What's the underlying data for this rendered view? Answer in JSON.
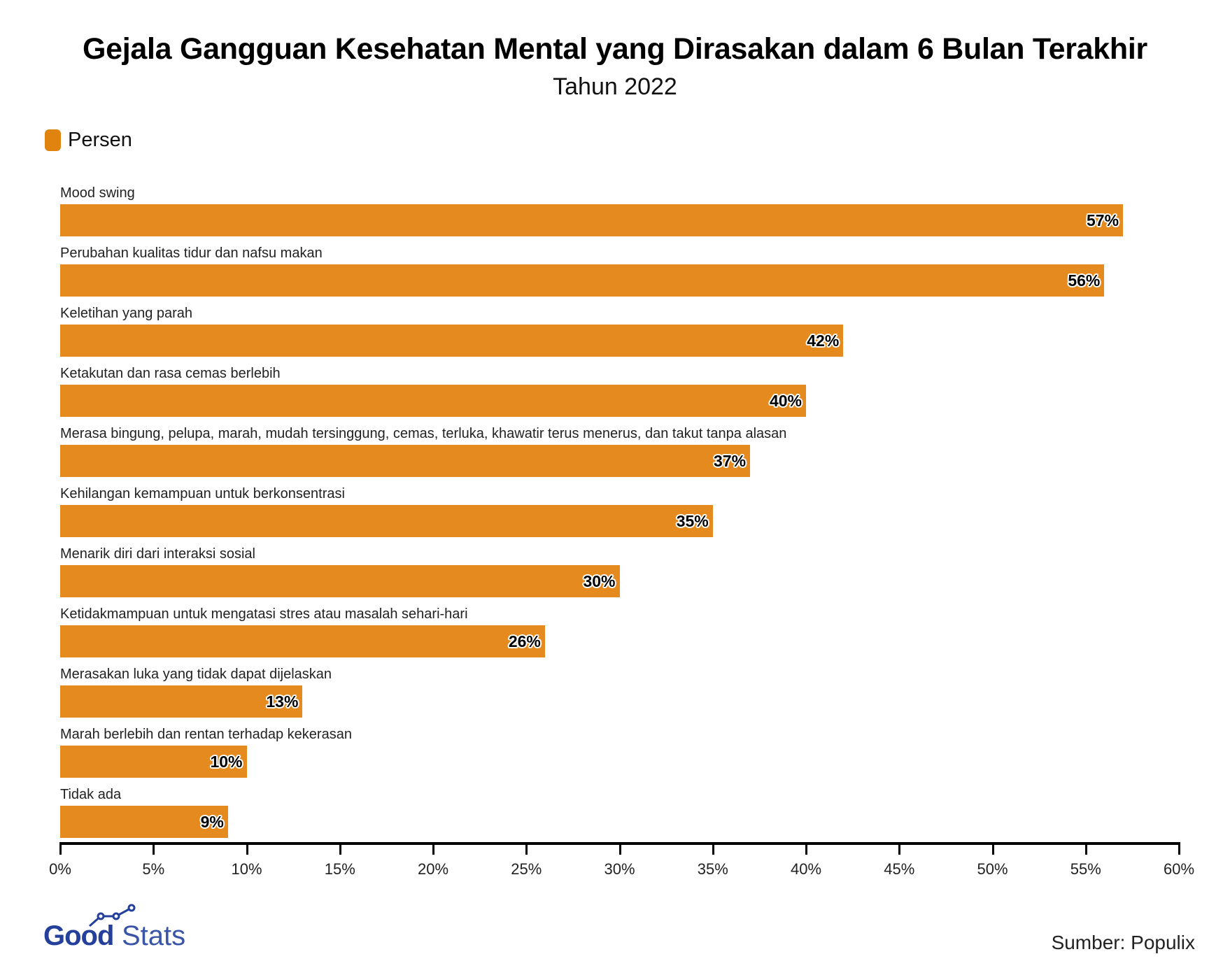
{
  "header": {
    "title": "Gejala Gangguan Kesehatan Mental yang Dirasakan dalam 6 Bulan Terakhir",
    "subtitle": "Tahun 2022"
  },
  "legend": {
    "label": "Persen",
    "color": "#E1830F"
  },
  "rows": [
    {
      "label": "Mood swing",
      "value": 57,
      "value_label": "57%"
    },
    {
      "label": "Perubahan kualitas tidur dan nafsu makan",
      "value": 56,
      "value_label": "56%"
    },
    {
      "label": "Keletihan yang parah",
      "value": 42,
      "value_label": "42%"
    },
    {
      "label": "Ketakutan dan rasa cemas berlebih",
      "value": 40,
      "value_label": "40%"
    },
    {
      "label": "Merasa bingung, pelupa, marah, mudah tersinggung, cemas, terluka, khawatir terus menerus, dan takut tanpa alasan",
      "value": 37,
      "value_label": "37%"
    },
    {
      "label": "Kehilangan kemampuan untuk berkonsentrasi",
      "value": 35,
      "value_label": "35%"
    },
    {
      "label": "Menarik diri dari interaksi sosial",
      "value": 30,
      "value_label": "30%"
    },
    {
      "label": "Ketidakmampuan untuk mengatasi stres atau masalah sehari-hari",
      "value": 26,
      "value_label": "26%"
    },
    {
      "label": "Merasakan luka yang tidak dapat dijelaskan",
      "value": 13,
      "value_label": "13%"
    },
    {
      "label": "Marah berlebih dan rentan terhadap kekerasan",
      "value": 10,
      "value_label": "10%"
    },
    {
      "label": "Tidak ada",
      "value": 9,
      "value_label": "9%"
    }
  ],
  "axis": {
    "ticks": [
      "0%",
      "5%",
      "10%",
      "15%",
      "20%",
      "25%",
      "30%",
      "35%",
      "40%",
      "45%",
      "50%",
      "55%",
      "60%"
    ]
  },
  "footer": {
    "logo_good": "Good",
    "logo_stats": "Stats",
    "source": "Sumber: Populix"
  },
  "colors": {
    "bar": "#E48A1F",
    "logo": "#24409A"
  },
  "chart_data": {
    "type": "bar",
    "orientation": "horizontal",
    "title": "Gejala Gangguan Kesehatan Mental yang Dirasakan dalam 6 Bulan Terakhir",
    "subtitle": "Tahun 2022",
    "categories": [
      "Mood swing",
      "Perubahan kualitas tidur dan nafsu makan",
      "Keletihan yang parah",
      "Ketakutan dan rasa cemas berlebih",
      "Merasa bingung, pelupa, marah, mudah tersinggung, cemas, terluka, khawatir terus menerus, dan takut tanpa alasan",
      "Kehilangan kemampuan untuk berkonsentrasi",
      "Menarik diri dari interaksi sosial",
      "Ketidakmampuan untuk mengatasi stres atau masalah sehari-hari",
      "Merasakan luka yang tidak dapat dijelaskan",
      "Marah berlebih dan rentan terhadap kekerasan",
      "Tidak ada"
    ],
    "series": [
      {
        "name": "Persen",
        "color": "#E48A1F",
        "values": [
          57,
          56,
          42,
          40,
          37,
          35,
          30,
          26,
          13,
          10,
          9
        ]
      }
    ],
    "xlabel": "",
    "ylabel": "",
    "xlim": [
      0,
      60
    ],
    "x_ticks": [
      0,
      5,
      10,
      15,
      20,
      25,
      30,
      35,
      40,
      45,
      50,
      55,
      60
    ],
    "tick_format": "percent",
    "grid": false,
    "legend_position": "top-left",
    "data_labels": true,
    "source": "Sumber: Populix"
  }
}
